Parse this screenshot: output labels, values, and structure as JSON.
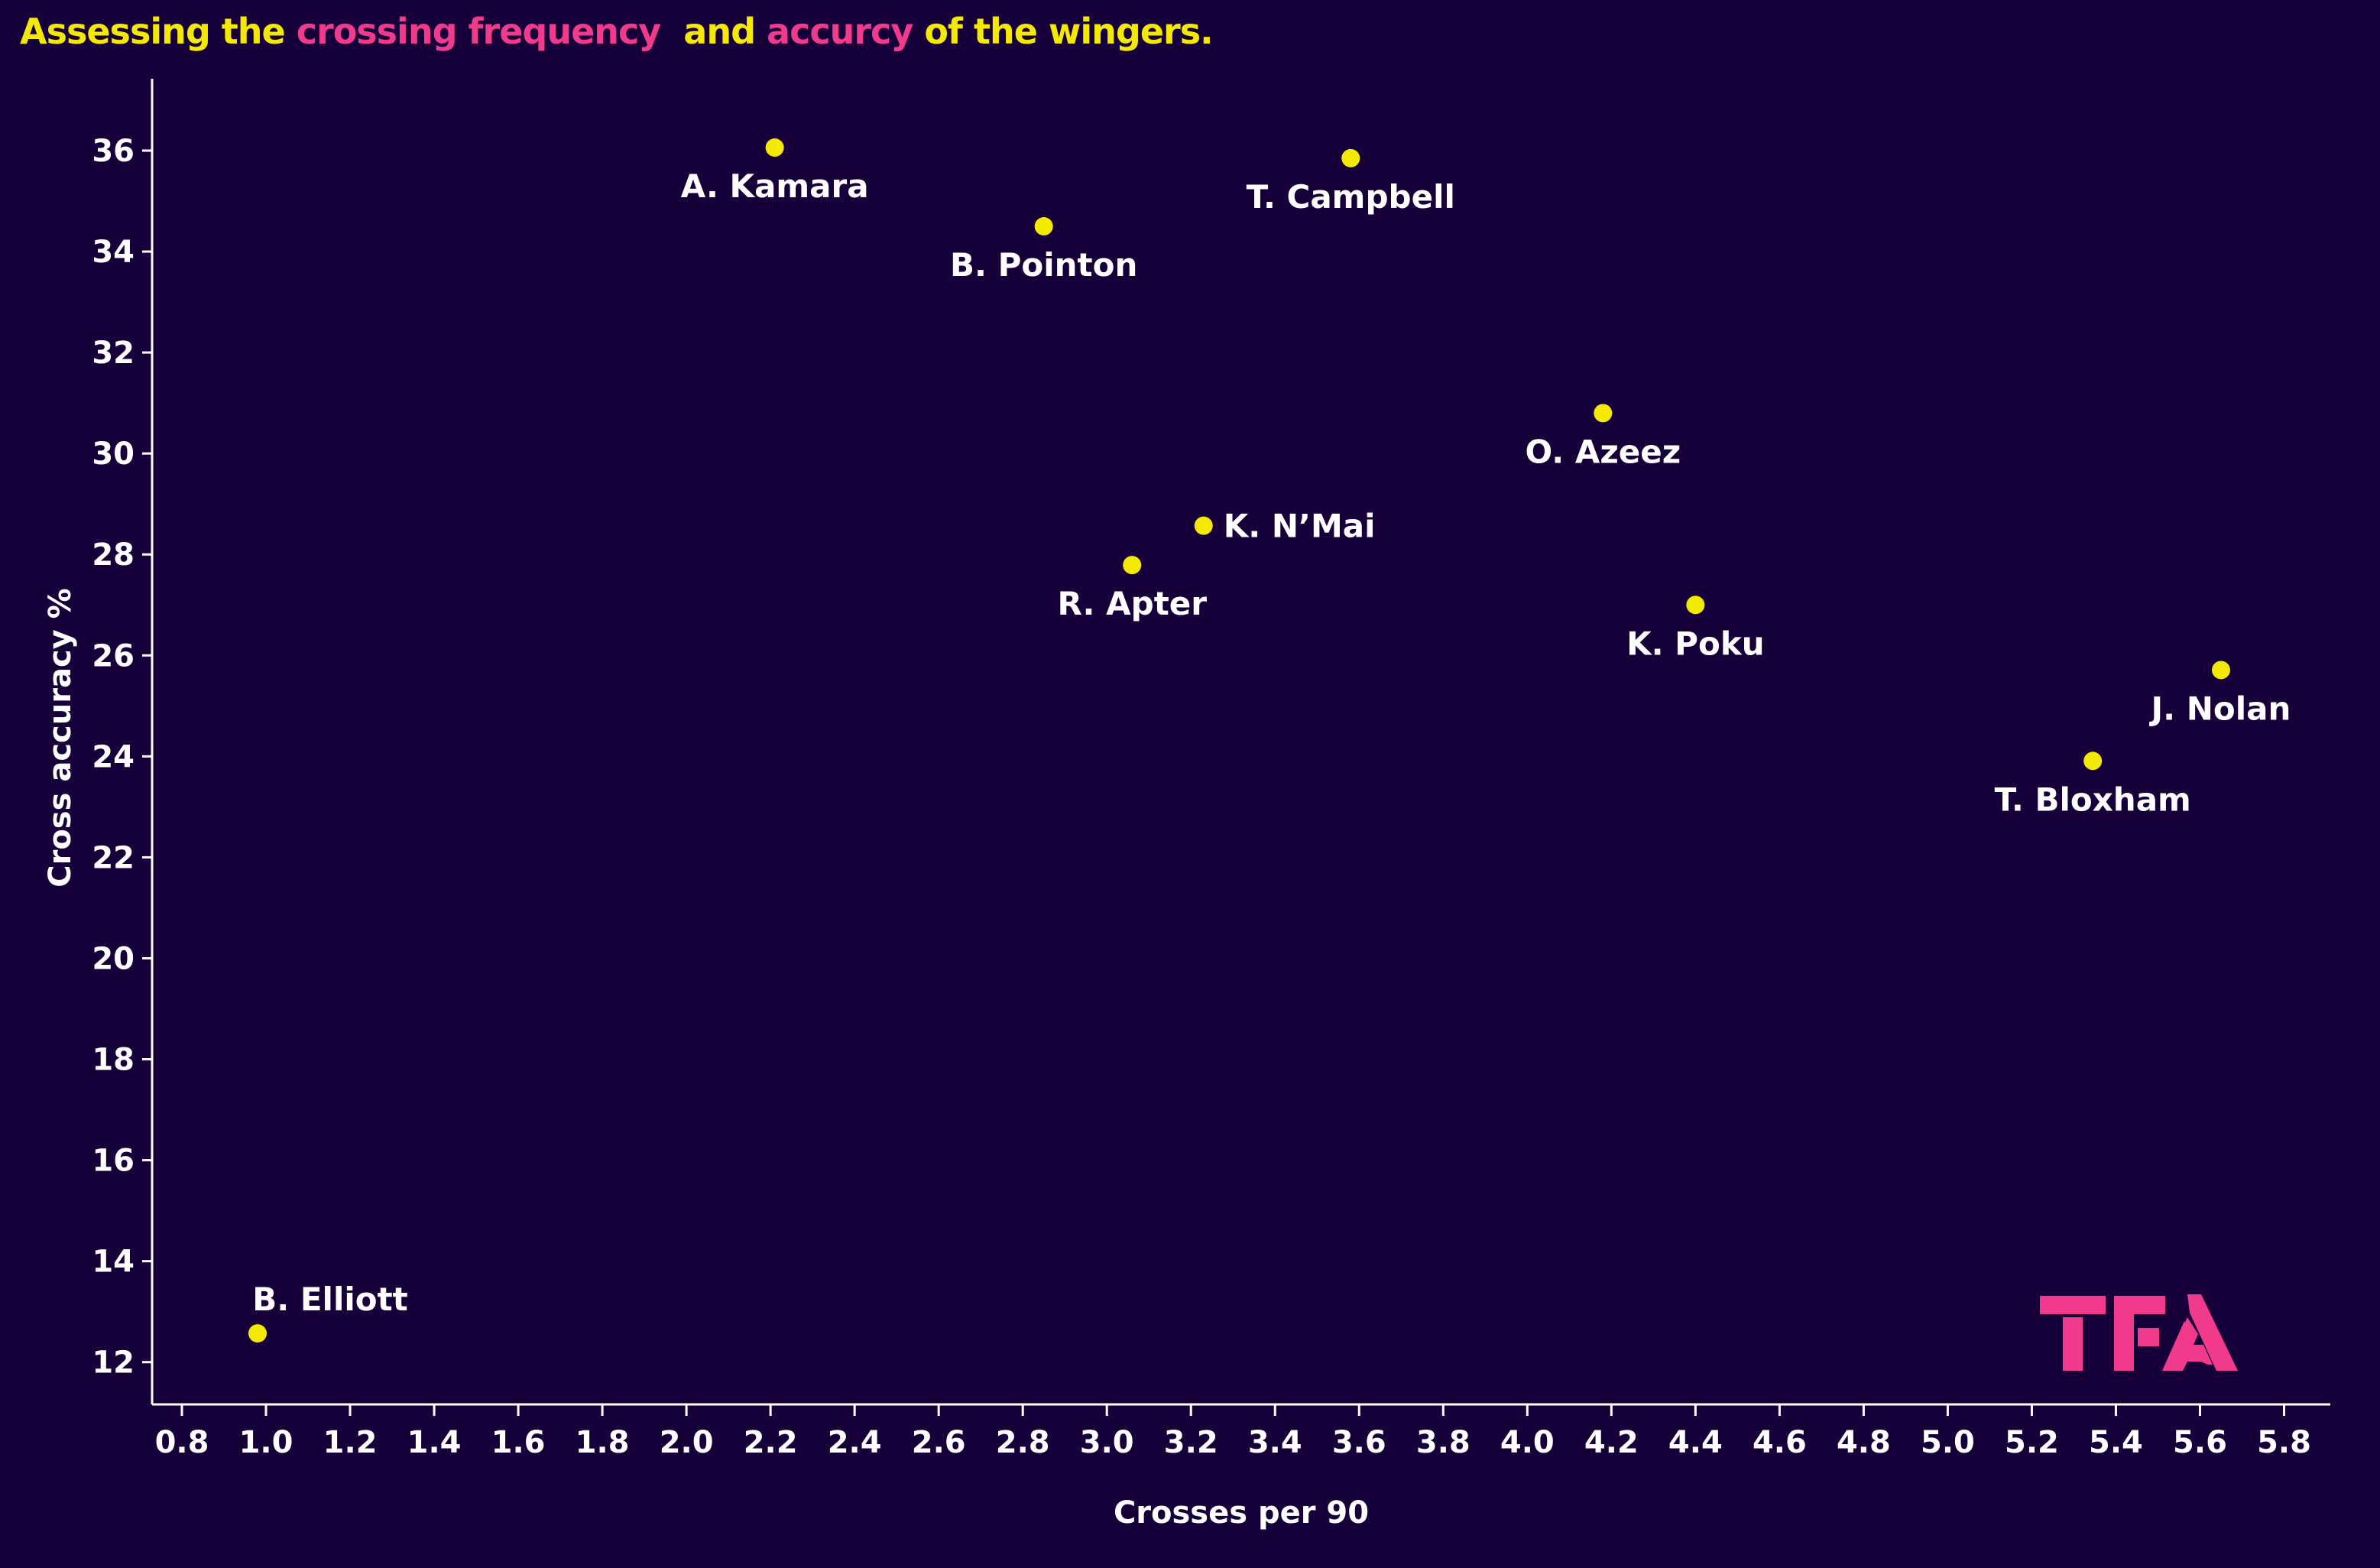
{
  "title": {
    "part1": "Assessing the ",
    "part2": "crossing frequency",
    "part3": "  and ",
    "part4": "accurcy",
    "part5": " of the wingers."
  },
  "logo_text": "TFA",
  "colors": {
    "background": "#17003a",
    "title": "#f4ea00",
    "highlight": "#f03b8c",
    "point": "#f4ea00",
    "text": "#ffffff"
  },
  "chart_data": {
    "type": "scatter",
    "title": "Assessing the crossing frequency  and accurcy of the wingers.",
    "xlabel": "Crosses per 90",
    "ylabel": "Cross accuracy %",
    "xlim": [
      0.73,
      5.91
    ],
    "ylim": [
      11.2,
      37.4
    ],
    "xticks": [
      "0.8",
      "1.0",
      "1.2",
      "1.4",
      "1.6",
      "1.8",
      "2.0",
      "2.2",
      "2.4",
      "2.6",
      "2.8",
      "3.0",
      "3.2",
      "3.4",
      "3.6",
      "3.8",
      "4.0",
      "4.2",
      "4.4",
      "4.6",
      "4.8",
      "5.0",
      "5.2",
      "5.4",
      "5.6",
      "5.8"
    ],
    "yticks": [
      "12",
      "14",
      "16",
      "18",
      "20",
      "22",
      "24",
      "26",
      "28",
      "30",
      "32",
      "34",
      "36"
    ],
    "grid": false,
    "points": [
      {
        "name": "A. Kamara",
        "x": 2.21,
        "y": 36.06,
        "label_pos": "below"
      },
      {
        "name": "B. Pointon",
        "x": 2.85,
        "y": 34.5,
        "label_pos": "below"
      },
      {
        "name": "T. Campbell",
        "x": 3.58,
        "y": 35.85,
        "label_pos": "below"
      },
      {
        "name": "O. Azeez",
        "x": 4.18,
        "y": 30.8,
        "label_pos": "below"
      },
      {
        "name": "K. N’Mai",
        "x": 3.23,
        "y": 28.57,
        "label_pos": "right"
      },
      {
        "name": "R. Apter",
        "x": 3.06,
        "y": 27.79,
        "label_pos": "below"
      },
      {
        "name": "K. Poku",
        "x": 4.4,
        "y": 27.0,
        "label_pos": "below"
      },
      {
        "name": "J. Nolan",
        "x": 5.65,
        "y": 25.71,
        "label_pos": "below"
      },
      {
        "name": "T. Bloxham",
        "x": 5.345,
        "y": 23.91,
        "label_pos": "below"
      },
      {
        "name": "B. Elliott",
        "x": 0.98,
        "y": 12.57,
        "label_pos": "above"
      }
    ]
  }
}
